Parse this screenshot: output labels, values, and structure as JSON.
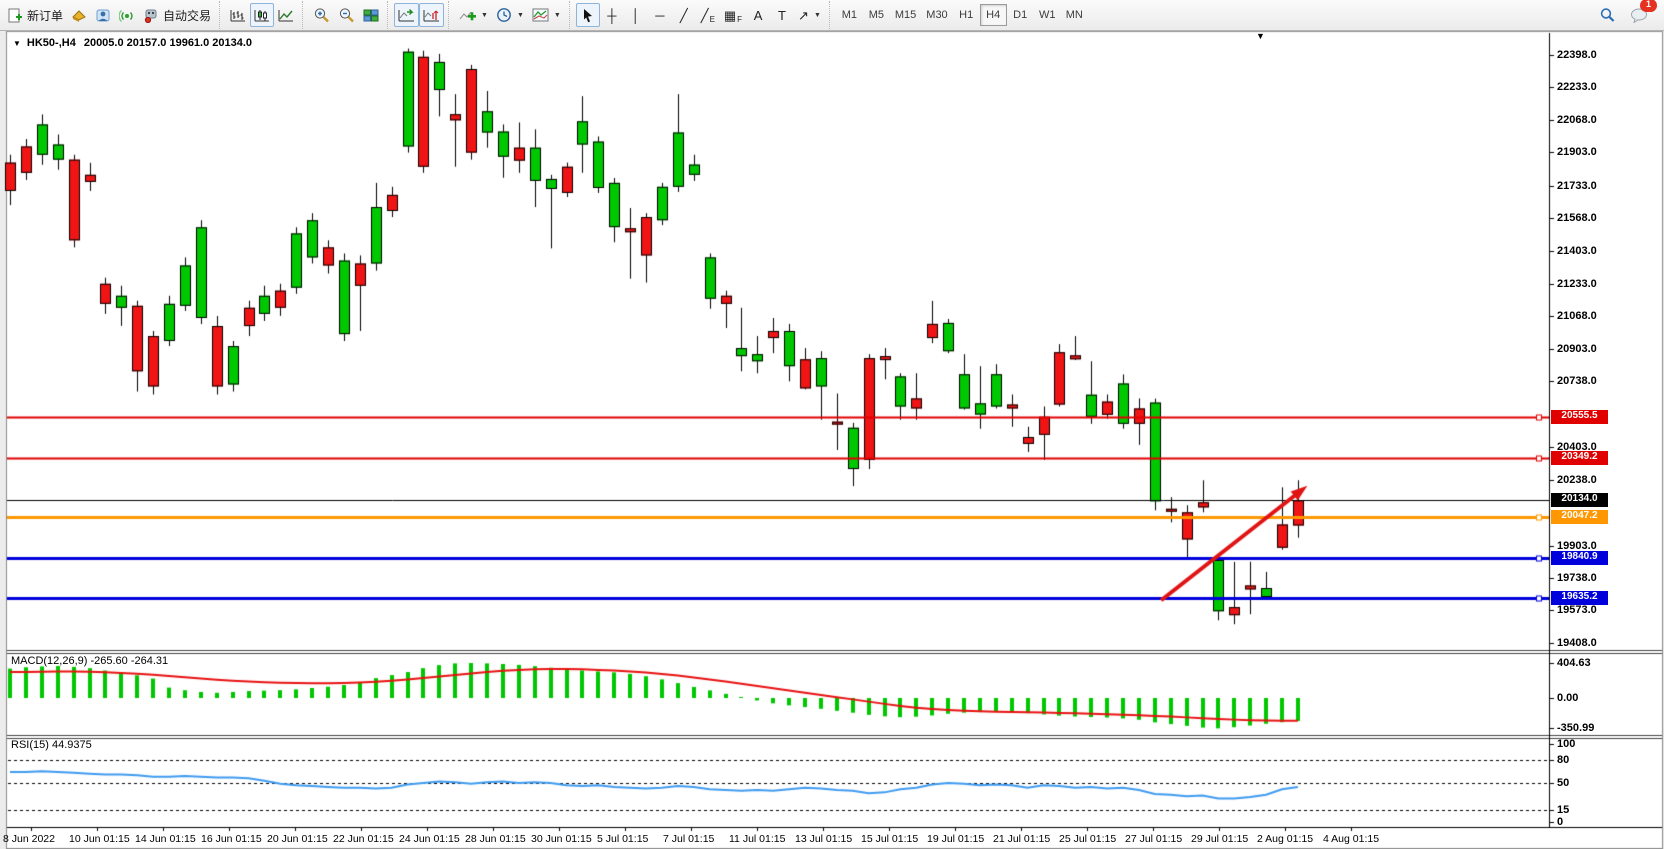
{
  "glyphs": {
    "caret_down": "▼"
  },
  "toolbar": {
    "new_order_label": "新订单",
    "autotrading_label": "自动交易",
    "notification_count": "1",
    "timeframes": [
      "M1",
      "M5",
      "M15",
      "M30",
      "H1",
      "H4",
      "D1",
      "W1",
      "MN"
    ],
    "active_timeframe": "H4",
    "tools": [
      {
        "name": "cursor-tool",
        "svg": "cursor",
        "active": true
      },
      {
        "name": "crosshair-tool",
        "glyph": "┼"
      },
      {
        "name": "vertical-line-tool",
        "glyph": "│"
      },
      {
        "name": "horizontal-line-tool",
        "glyph": "─"
      },
      {
        "name": "trendline-tool",
        "glyph": "╱"
      },
      {
        "name": "equidistant-channel-tool",
        "glyph": "╱",
        "sub": "E"
      },
      {
        "name": "fibonacci-tool",
        "glyph": "▦",
        "sub": "F"
      },
      {
        "name": "text-tool",
        "glyph": "A"
      },
      {
        "name": "text-label-tool",
        "glyph": "T"
      },
      {
        "name": "arrows-tool",
        "glyph": "↗",
        "caret": true
      }
    ]
  },
  "chart_data": {
    "type": "candlestick",
    "title_symbol": "HK50-,H4",
    "title_ohlc": "20005.0 20157.0 19961.0 20134.0",
    "ohlc_current": {
      "open": 20005.0,
      "high": 20157.0,
      "low": 19961.0,
      "close": 20134.0
    },
    "y_range": {
      "top": 22509,
      "bottom": 19372
    },
    "price_axis_ticks": [
      "22398.0",
      "22233.0",
      "22068.0",
      "21903.0",
      "21733.0",
      "21568.0",
      "21403.0",
      "21233.0",
      "21068.0",
      "20903.0",
      "20738.0",
      "20403.0",
      "20238.0",
      "19903.0",
      "19738.0",
      "19573.0",
      "19408.0"
    ],
    "price_tags": [
      {
        "label": "20555.5",
        "price": 20555.5,
        "bg": "#e00000"
      },
      {
        "label": "20349.2",
        "price": 20349.2,
        "bg": "#e00000"
      },
      {
        "label": "20134.0",
        "price": 20134.0,
        "bg": "#000000"
      },
      {
        "label": "20047.2",
        "price": 20047.2,
        "bg": "#ff9800"
      },
      {
        "label": "19840.9",
        "price": 19840.9,
        "bg": "#0000dd"
      },
      {
        "label": "19635.2",
        "price": 19635.2,
        "bg": "#0000dd"
      }
    ],
    "hlines": [
      {
        "price": 20555.5,
        "color": "#e00000",
        "width": 2
      },
      {
        "price": 20349.2,
        "color": "#e00000",
        "width": 2
      },
      {
        "price": 20134.0,
        "color": "#000000",
        "width": 1
      },
      {
        "price": 20047.2,
        "color": "#ff9800",
        "width": 3
      },
      {
        "price": 19840.9,
        "color": "#0000dd",
        "width": 3
      },
      {
        "price": 19635.2,
        "color": "#0000dd",
        "width": 3
      }
    ],
    "trend_arrow": {
      "from_bar": 72.4,
      "from_price": 19625,
      "to_bar": 81.4,
      "to_price": 20195,
      "color": "#e01414"
    },
    "candle_colors": {
      "up": "#00c800",
      "down": "#f01414",
      "outline": "#000000"
    },
    "candles": [
      [
        21850,
        21890,
        21634,
        21706
      ],
      [
        21932,
        21970,
        21762,
        21798
      ],
      [
        21890,
        22095,
        21839,
        22044
      ],
      [
        21865,
        21993,
        21814,
        21942
      ],
      [
        21865,
        21890,
        21419,
        21455
      ],
      [
        21788,
        21849,
        21706,
        21752
      ],
      [
        21234,
        21265,
        21081,
        21132
      ],
      [
        21112,
        21224,
        21020,
        21173
      ],
      [
        21122,
        21148,
        20686,
        20789
      ],
      [
        20968,
        20994,
        20671,
        20712
      ],
      [
        20943,
        21173,
        20917,
        21132
      ],
      [
        21122,
        21368,
        21096,
        21327
      ],
      [
        21060,
        21557,
        21029,
        21521
      ],
      [
        21019,
        21070,
        20671,
        20712
      ],
      [
        20722,
        20943,
        20686,
        20917
      ],
      [
        21112,
        21148,
        20968,
        21019
      ],
      [
        21081,
        21224,
        21045,
        21173
      ],
      [
        21199,
        21234,
        21071,
        21112
      ],
      [
        21214,
        21521,
        21183,
        21490
      ],
      [
        21368,
        21593,
        21337,
        21557
      ],
      [
        21419,
        21455,
        21286,
        21327
      ],
      [
        20978,
        21388,
        20943,
        21352
      ],
      [
        21337,
        21378,
        20994,
        21224
      ],
      [
        21337,
        21747,
        21301,
        21624
      ],
      [
        21686,
        21727,
        21573,
        21604
      ],
      [
        21932,
        22430,
        21901,
        22414
      ],
      [
        22388,
        22419,
        21798,
        21829
      ],
      [
        22219,
        22403,
        22085,
        22362
      ],
      [
        22096,
        22198,
        21829,
        22065
      ],
      [
        22326,
        22347,
        21865,
        21901
      ],
      [
        22003,
        22214,
        21926,
        22111
      ],
      [
        21880,
        22044,
        21773,
        22008
      ],
      [
        21926,
        22054,
        21798,
        21860
      ],
      [
        21757,
        22019,
        21624,
        21926
      ],
      [
        21716,
        21788,
        21414,
        21767
      ],
      [
        21829,
        21850,
        21675,
        21696
      ],
      [
        21942,
        22188,
        21798,
        22060
      ],
      [
        21721,
        21983,
        21696,
        21957
      ],
      [
        21522,
        21772,
        21445,
        21747
      ],
      [
        21516,
        21619,
        21260,
        21496
      ],
      [
        21573,
        21593,
        21240,
        21378
      ],
      [
        21557,
        21747,
        21532,
        21727
      ],
      [
        21727,
        22198,
        21701,
        22003
      ],
      [
        21788,
        21890,
        21757,
        21840
      ],
      [
        21158,
        21388,
        21107,
        21368
      ],
      [
        21173,
        21199,
        21009,
        21132
      ],
      [
        20866,
        21112,
        20789,
        20907
      ],
      [
        20840,
        20968,
        20779,
        20876
      ],
      [
        20994,
        21060,
        20881,
        20958
      ],
      [
        20815,
        21030,
        20738,
        20994
      ],
      [
        20850,
        20907,
        20697,
        20702
      ],
      [
        20712,
        20891,
        20543,
        20856
      ],
      [
        20533,
        20676,
        20389,
        20518
      ],
      [
        20292,
        20527,
        20205,
        20502
      ],
      [
        20856,
        20876,
        20292,
        20338
      ],
      [
        20866,
        20907,
        20748,
        20846
      ],
      [
        20610,
        20779,
        20543,
        20763
      ],
      [
        20651,
        20779,
        20543,
        20600
      ],
      [
        21030,
        21147,
        20932,
        20958
      ],
      [
        20891,
        21055,
        20881,
        21035
      ],
      [
        20600,
        20876,
        20594,
        20774
      ],
      [
        20569,
        20815,
        20497,
        20626
      ],
      [
        20610,
        20825,
        20600,
        20774
      ],
      [
        20620,
        20671,
        20507,
        20600
      ],
      [
        20455,
        20507,
        20379,
        20420
      ],
      [
        20558,
        20610,
        20338,
        20466
      ],
      [
        20886,
        20927,
        20610,
        20620
      ],
      [
        20870,
        20968,
        20846,
        20850
      ],
      [
        20558,
        20840,
        20522,
        20670
      ],
      [
        20635,
        20671,
        20548,
        20568
      ],
      [
        20522,
        20773,
        20497,
        20727
      ],
      [
        20600,
        20651,
        20415,
        20522
      ],
      [
        20128,
        20650,
        20082,
        20630
      ],
      [
        20090,
        20149,
        20021,
        20075
      ],
      [
        20072,
        20108,
        19841,
        19934
      ],
      [
        20123,
        20235,
        20072,
        20097
      ],
      [
        19569,
        19851,
        19523,
        19830
      ],
      [
        19590,
        19820,
        19503,
        19549
      ],
      [
        19700,
        19821,
        19554,
        19680
      ],
      [
        19641,
        19769,
        19626,
        19687
      ],
      [
        20010,
        20199,
        19882,
        19892
      ],
      [
        20133,
        20235,
        19943,
        20005
      ]
    ],
    "x_labels": [
      "8 Jun 2022",
      "10 Jun 01:15",
      "14 Jun 01:15",
      "16 Jun 01:15",
      "20 Jun 01:15",
      "22 Jun 01:15",
      "24 Jun 01:15",
      "28 Jun 01:15",
      "30 Jun 01:15",
      "5 Jul 01:15",
      "7 Jul 01:15",
      "11 Jul 01:15",
      "13 Jul 01:15",
      "15 Jul 01:15",
      "19 Jul 01:15",
      "21 Jul 01:15",
      "25 Jul 01:15",
      "27 Jul 01:15",
      "29 Jul 01:15",
      "2 Aug 01:15",
      "4 Aug 01:15"
    ],
    "indicators": {
      "macd": {
        "label": "MACD(12,26,9)",
        "values_text": "-265.60 -264.31",
        "axis_ticks": [
          "404.63",
          "0.00",
          "-350.99"
        ],
        "max": 404.63,
        "min": -350.99,
        "histogram_color": "#00c800",
        "signal_color": "#e81010",
        "histogram": [
          340,
          355,
          365,
          370,
          360,
          345,
          318,
          295,
          262,
          225,
          120,
          90,
          70,
          60,
          70,
          80,
          85,
          90,
          100,
          115,
          130,
          150,
          185,
          230,
          265,
          300,
          345,
          380,
          400,
          404.63,
          400,
          393,
          383,
          368,
          350,
          332,
          318,
          307,
          296,
          278,
          252,
          215,
          172,
          128,
          88,
          48,
          12,
          -28,
          -62,
          -85,
          -105,
          -125,
          -148,
          -170,
          -195,
          -212,
          -222,
          -216,
          -202,
          -182,
          -170,
          -163,
          -158,
          -163,
          -175,
          -190,
          -204,
          -214,
          -220,
          -226,
          -236,
          -252,
          -282,
          -302,
          -322,
          -342,
          -350.99,
          -338,
          -318,
          -298,
          -280,
          -265.6
        ],
        "signal": [
          300,
          302,
          304,
          305,
          305,
          303,
          298,
          290,
          280,
          268,
          255,
          240,
          226,
          212,
          200,
          190,
          182,
          176,
          172,
          170,
          170,
          173,
          179,
          188,
          200,
          214,
          230,
          248,
          266,
          284,
          300,
          314,
          325,
          332,
          336,
          335,
          331,
          325,
          317,
          307,
          294,
          278,
          259,
          238,
          215,
          191,
          166,
          140,
          114,
          88,
          62,
          36,
          10,
          -16,
          -42,
          -68,
          -92,
          -112,
          -128,
          -140,
          -148,
          -154,
          -158,
          -161,
          -164,
          -168,
          -172,
          -177,
          -182,
          -187,
          -193,
          -199,
          -207,
          -215,
          -224,
          -233,
          -242,
          -250,
          -256,
          -260,
          -263,
          -264.31
        ]
      },
      "rsi": {
        "label": "RSI(15)",
        "value_text": "44.9375",
        "axis_ticks": [
          "100",
          "80",
          "50",
          "15",
          "0"
        ],
        "levels": [
          80,
          50,
          15
        ],
        "line_color": "#3f9bf0",
        "series": [
          64,
          64,
          65,
          64,
          63,
          62,
          61,
          61,
          60,
          58,
          58,
          59,
          58,
          57,
          57,
          56,
          53,
          49,
          47,
          46,
          45,
          44,
          44,
          43,
          44,
          48,
          50,
          52,
          51,
          49,
          51,
          52,
          50,
          51,
          50,
          47,
          46,
          47,
          45,
          44,
          43,
          44,
          46,
          45,
          42,
          41,
          40,
          41,
          40,
          42,
          44,
          43,
          41,
          40,
          37,
          38,
          42,
          44,
          48,
          50,
          49,
          47,
          48,
          47,
          44,
          47,
          46,
          44,
          45,
          43,
          44,
          41,
          36,
          35,
          33,
          34,
          30,
          30,
          32,
          35,
          42,
          44.94
        ]
      }
    }
  }
}
